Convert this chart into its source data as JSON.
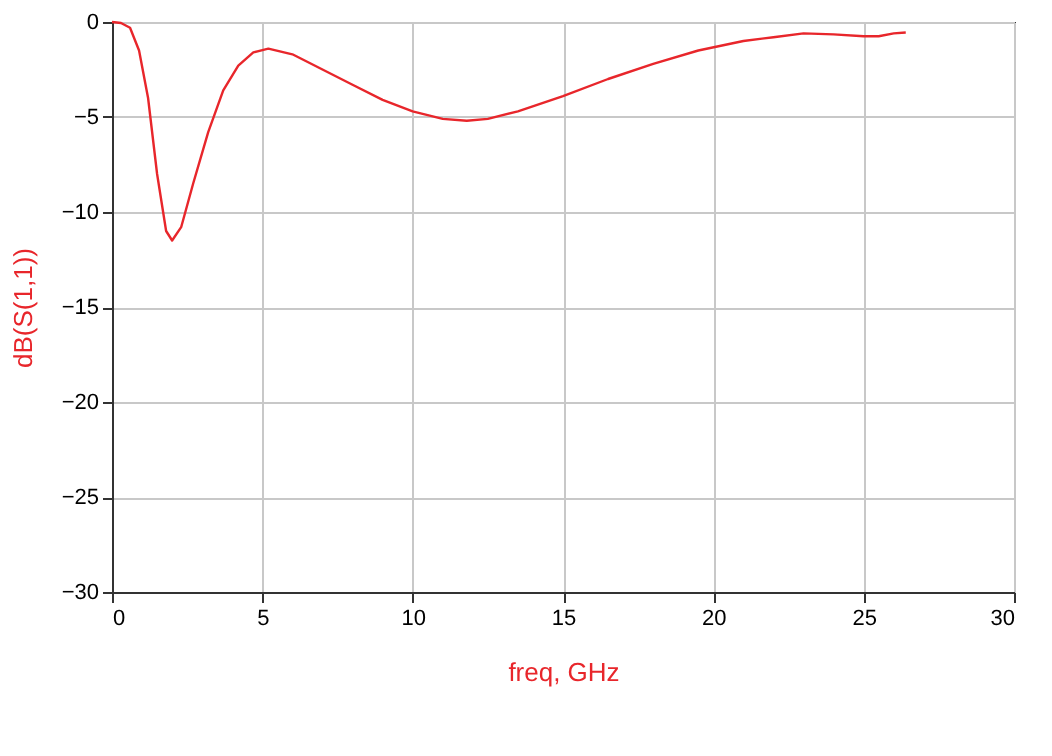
{
  "chart_data": {
    "type": "line",
    "xlabel": "freq, GHz",
    "ylabel": "dB(S(1,1))",
    "xlim": [
      0,
      30
    ],
    "ylim": [
      -30,
      0
    ],
    "xticks": [
      0,
      5,
      10,
      15,
      20,
      25,
      30
    ],
    "yticks": [
      -30,
      -25,
      -20,
      -15,
      -10,
      -5,
      0
    ],
    "grid": true,
    "marker": "none",
    "line_style": "solid",
    "series": [
      {
        "color": "#e8262b",
        "x": [
          0,
          0.3,
          0.6,
          0.9,
          1.2,
          1.5,
          1.8,
          2.0,
          2.3,
          2.7,
          3.2,
          3.7,
          4.2,
          4.7,
          5.2,
          6,
          7,
          8,
          9,
          10,
          11,
          11.8,
          12.5,
          13.5,
          15,
          16.5,
          18,
          19.5,
          21,
          22,
          23,
          24,
          25,
          25.5,
          26,
          26.4
        ],
        "values": [
          0,
          -0.05,
          -0.3,
          -1.5,
          -4,
          -8,
          -11,
          -11.5,
          -10.8,
          -8.5,
          -5.8,
          -3.6,
          -2.3,
          -1.6,
          -1.4,
          -1.7,
          -2.5,
          -3.3,
          -4.1,
          -4.7,
          -5.1,
          -5.2,
          -5.1,
          -4.7,
          -3.9,
          -3.0,
          -2.2,
          -1.5,
          -1.0,
          -0.8,
          -0.6,
          -0.65,
          -0.75,
          -0.75,
          -0.6,
          -0.55
        ]
      }
    ]
  }
}
